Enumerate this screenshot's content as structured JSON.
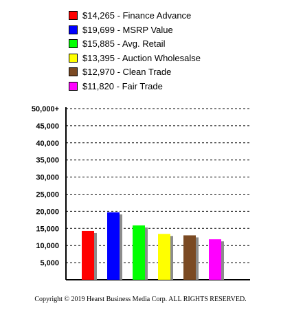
{
  "legend": [
    {
      "label": "$14,265 - Finance Advance",
      "color": "#ff0000"
    },
    {
      "label": "$19,699 - MSRP Value",
      "color": "#0000ff"
    },
    {
      "label": "$15,885 - Avg. Retail",
      "color": "#00ff00"
    },
    {
      "label": "$13,395 - Auction Wholesalse",
      "color": "#ffff00"
    },
    {
      "label": "$12,970 - Clean Trade",
      "color": "#7b4a23"
    },
    {
      "label": "$11,820 - Fair Trade",
      "color": "#ff00ff"
    }
  ],
  "chart_data": {
    "type": "bar",
    "categories": [
      "Finance Advance",
      "MSRP Value",
      "Avg. Retail",
      "Auction Wholesalse",
      "Clean Trade",
      "Fair Trade"
    ],
    "values": [
      14265,
      19699,
      15885,
      13395,
      12970,
      11820
    ],
    "colors": [
      "#ff0000",
      "#0000ff",
      "#00ff00",
      "#ffff00",
      "#7b4a23",
      "#ff00ff"
    ],
    "y_tick_labels": [
      "5,000",
      "10,000",
      "15,000",
      "20,000",
      "25,000",
      "30,000",
      "35,000",
      "40,000",
      "45,000",
      "50,000+"
    ],
    "ylim": [
      0,
      50000
    ],
    "grid": true,
    "legend_position": "top"
  },
  "copyright": "Copyright © 2019 Hearst Business Media Corp. ALL RIGHTS RESERVED."
}
